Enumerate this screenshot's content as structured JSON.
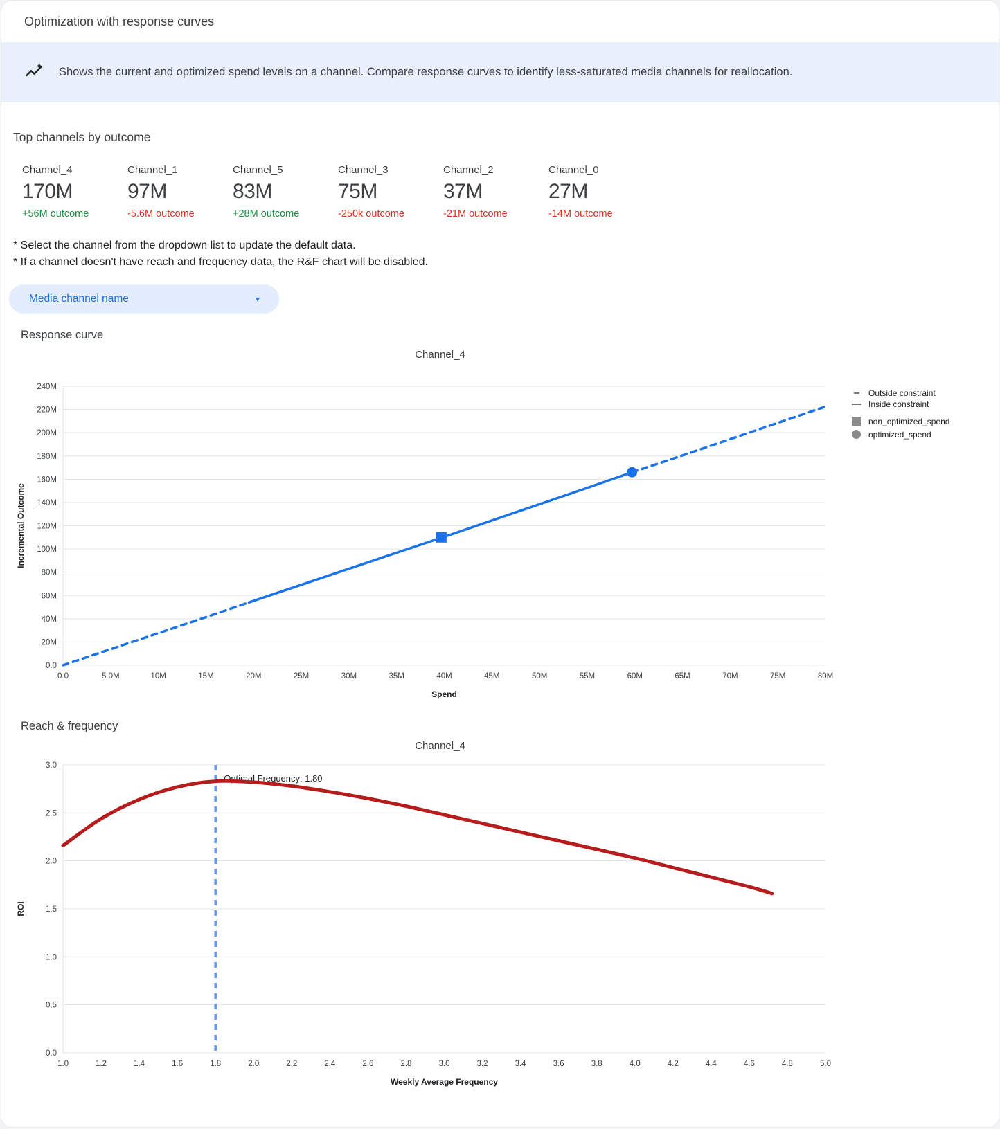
{
  "header": {
    "title": "Optimization with response curves"
  },
  "banner": {
    "icon": "insights-icon",
    "text": "Shows the current and optimized spend levels on a channel. Compare response curves to identify less-saturated media channels for reallocation."
  },
  "top_channels": {
    "heading": "Top channels by outcome",
    "channels": [
      {
        "name": "Channel_4",
        "value": "170M",
        "outcome": "+56M outcome",
        "direction": "up"
      },
      {
        "name": "Channel_1",
        "value": "97M",
        "outcome": "-5.6M outcome",
        "direction": "down"
      },
      {
        "name": "Channel_5",
        "value": "83M",
        "outcome": "+28M outcome",
        "direction": "up"
      },
      {
        "name": "Channel_3",
        "value": "75M",
        "outcome": "-250k outcome",
        "direction": "down"
      },
      {
        "name": "Channel_2",
        "value": "37M",
        "outcome": "-21M outcome",
        "direction": "down"
      },
      {
        "name": "Channel_0",
        "value": "27M",
        "outcome": "-14M outcome",
        "direction": "down"
      }
    ]
  },
  "notes": {
    "line1": "* Select the channel from the dropdown list to update the default data.",
    "line2": "* If a channel doesn't have reach and frequency data, the R&F chart will be disabled."
  },
  "dropdown": {
    "label": "Media channel name",
    "icon": "dropdown-caret-icon",
    "caret": "▾"
  },
  "sections": {
    "response_curve": "Response curve",
    "reach_frequency": "Reach & frequency"
  },
  "colors": {
    "banner_bg": "#e8f0fe",
    "accent_blue": "#1a73e8",
    "green": "#1e8e3e",
    "red": "#d93025",
    "line_blue": "#1a73e8",
    "curve_red": "#b71c1c",
    "vline_blue": "#5e97f6",
    "legend_gray": "#757575",
    "marker_gray": "#8a8a8a",
    "grid": "#e3e3e3"
  },
  "chart_data": [
    {
      "name": "response_curve",
      "type": "line",
      "title": "Channel_4",
      "xlabel": "Spend",
      "ylabel": "Incremental Outcome",
      "xlim": [
        0,
        80
      ],
      "ylim": [
        0,
        240
      ],
      "grid": true,
      "legend_position": "right",
      "color": "#1a73e8",
      "stroke_width": 3.5,
      "x_ticks": [
        {
          "v": 0,
          "label": "0.0"
        },
        {
          "v": 5,
          "label": "5.0M"
        },
        {
          "v": 10,
          "label": "10M"
        },
        {
          "v": 15,
          "label": "15M"
        },
        {
          "v": 20,
          "label": "20M"
        },
        {
          "v": 25,
          "label": "25M"
        },
        {
          "v": 30,
          "label": "30M"
        },
        {
          "v": 35,
          "label": "35M"
        },
        {
          "v": 40,
          "label": "40M"
        },
        {
          "v": 45,
          "label": "45M"
        },
        {
          "v": 50,
          "label": "50M"
        },
        {
          "v": 55,
          "label": "55M"
        },
        {
          "v": 60,
          "label": "60M"
        },
        {
          "v": 65,
          "label": "65M"
        },
        {
          "v": 70,
          "label": "70M"
        },
        {
          "v": 75,
          "label": "75M"
        },
        {
          "v": 80,
          "label": "80M"
        }
      ],
      "y_ticks": [
        {
          "v": 0,
          "label": "0.0"
        },
        {
          "v": 20,
          "label": "20M"
        },
        {
          "v": 40,
          "label": "40M"
        },
        {
          "v": 60,
          "label": "60M"
        },
        {
          "v": 80,
          "label": "80M"
        },
        {
          "v": 100,
          "label": "100M"
        },
        {
          "v": 120,
          "label": "120M"
        },
        {
          "v": 140,
          "label": "140M"
        },
        {
          "v": 160,
          "label": "160M"
        },
        {
          "v": 180,
          "label": "180M"
        },
        {
          "v": 200,
          "label": "200M"
        },
        {
          "v": 220,
          "label": "220M"
        },
        {
          "v": 240,
          "label": "240M"
        }
      ],
      "segments": [
        {
          "name": "outside-constraint-lower",
          "style": "dashed",
          "points": [
            [
              0,
              0
            ],
            [
              5,
              13.8
            ],
            [
              10,
              27.6
            ],
            [
              15,
              41.4
            ],
            [
              19.5,
              54
            ]
          ]
        },
        {
          "name": "inside-constraint",
          "style": "solid",
          "points": [
            [
              19.5,
              54
            ],
            [
              25,
              69.2
            ],
            [
              30,
              83
            ],
            [
              35,
              96.8
            ],
            [
              40,
              110.5
            ],
            [
              45,
              124.5
            ],
            [
              50,
              138.5
            ],
            [
              55,
              152.5
            ],
            [
              59.7,
              166
            ]
          ]
        },
        {
          "name": "outside-constraint-upper",
          "style": "dashed",
          "points": [
            [
              59.7,
              166
            ],
            [
              65,
              180.5
            ],
            [
              70,
              194.5
            ],
            [
              75,
              208.5
            ],
            [
              80,
              222.5
            ]
          ]
        }
      ],
      "markers": [
        {
          "shape": "square",
          "label": "non_optimized_spend",
          "x": 39.7,
          "y": 110,
          "size": 15
        },
        {
          "shape": "circle",
          "label": "optimized_spend",
          "x": 59.7,
          "y": 166,
          "size": 15
        }
      ],
      "legend": [
        {
          "swatch": "dash",
          "label": "Outside constraint"
        },
        {
          "swatch": "line",
          "label": "Inside constraint"
        },
        {
          "swatch": "square",
          "label": "non_optimized_spend"
        },
        {
          "swatch": "circle",
          "label": "optimized_spend"
        }
      ]
    },
    {
      "name": "reach_frequency",
      "type": "line",
      "title": "Channel_4",
      "xlabel": "Weekly Average Frequency",
      "ylabel": "ROI",
      "xlim": [
        1.0,
        5.0
      ],
      "ylim": [
        0,
        3.0
      ],
      "grid": true,
      "color": "#b71c1c",
      "stroke_width": 5,
      "x_ticks": [
        {
          "v": 1.0,
          "label": "1.0"
        },
        {
          "v": 1.2,
          "label": "1.2"
        },
        {
          "v": 1.4,
          "label": "1.4"
        },
        {
          "v": 1.6,
          "label": "1.6"
        },
        {
          "v": 1.8,
          "label": "1.8"
        },
        {
          "v": 2.0,
          "label": "2.0"
        },
        {
          "v": 2.2,
          "label": "2.2"
        },
        {
          "v": 2.4,
          "label": "2.4"
        },
        {
          "v": 2.6,
          "label": "2.6"
        },
        {
          "v": 2.8,
          "label": "2.8"
        },
        {
          "v": 3.0,
          "label": "3.0"
        },
        {
          "v": 3.2,
          "label": "3.2"
        },
        {
          "v": 3.4,
          "label": "3.4"
        },
        {
          "v": 3.6,
          "label": "3.6"
        },
        {
          "v": 3.8,
          "label": "3.8"
        },
        {
          "v": 4.0,
          "label": "4.0"
        },
        {
          "v": 4.2,
          "label": "4.2"
        },
        {
          "v": 4.4,
          "label": "4.4"
        },
        {
          "v": 4.6,
          "label": "4.6"
        },
        {
          "v": 4.8,
          "label": "4.8"
        },
        {
          "v": 5.0,
          "label": "5.0"
        }
      ],
      "y_ticks": [
        {
          "v": 0,
          "label": "0.0"
        },
        {
          "v": 0.5,
          "label": "0.5"
        },
        {
          "v": 1.0,
          "label": "1.0"
        },
        {
          "v": 1.5,
          "label": "1.5"
        },
        {
          "v": 2.0,
          "label": "2.0"
        },
        {
          "v": 2.5,
          "label": "2.5"
        },
        {
          "v": 3.0,
          "label": "3.0"
        }
      ],
      "vline": {
        "x": 1.8,
        "color": "#5e97f6",
        "annotation": "Optimal Frequency: 1.80"
      },
      "segments": [
        {
          "name": "roi-curve",
          "style": "solid",
          "smooth": true,
          "points": [
            [
              1.0,
              2.16
            ],
            [
              1.2,
              2.44
            ],
            [
              1.4,
              2.64
            ],
            [
              1.6,
              2.77
            ],
            [
              1.8,
              2.83
            ],
            [
              2.0,
              2.82
            ],
            [
              2.2,
              2.78
            ],
            [
              2.4,
              2.72
            ],
            [
              2.6,
              2.65
            ],
            [
              2.8,
              2.57
            ],
            [
              3.0,
              2.48
            ],
            [
              3.2,
              2.39
            ],
            [
              3.4,
              2.3
            ],
            [
              3.6,
              2.21
            ],
            [
              3.8,
              2.12
            ],
            [
              4.0,
              2.03
            ],
            [
              4.2,
              1.93
            ],
            [
              4.4,
              1.83
            ],
            [
              4.6,
              1.73
            ],
            [
              4.72,
              1.66
            ]
          ]
        }
      ]
    }
  ]
}
